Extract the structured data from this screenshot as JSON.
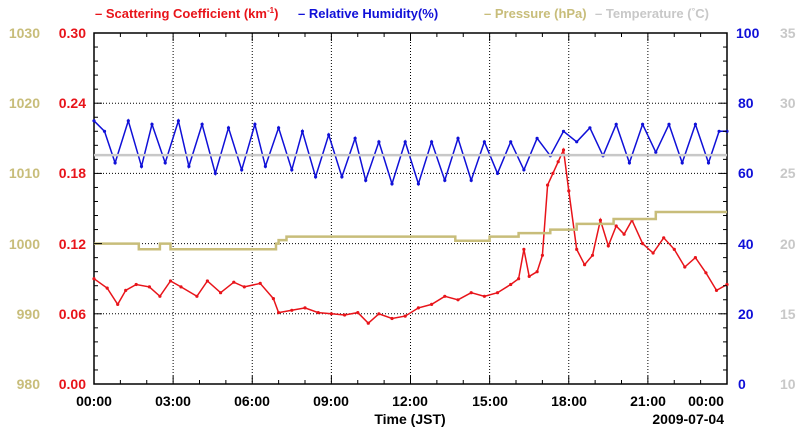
{
  "chart_data": {
    "type": "line",
    "date_label": "2009-07-04",
    "xlabel": "Time (JST)",
    "x_ticks": [
      "00:00",
      "03:00",
      "06:00",
      "09:00",
      "12:00",
      "15:00",
      "18:00",
      "21:00",
      "00:00"
    ],
    "x_range_hours": [
      0,
      24
    ],
    "legend": [
      {
        "dash": "–",
        "text": "Scattering Coefficient (km",
        "sup": "-1",
        "tail": ")",
        "color": "#e8141a"
      },
      {
        "dash": "–",
        "text": "Relative Humidity(%)",
        "color": "#1010d8"
      },
      {
        "dash": "–",
        "text": "Pressure (hPa)",
        "color": "#c8bd7a"
      },
      {
        "dash": "–",
        "text": "Temperature (",
        "deg": "°",
        "tail": "C)",
        "color": "#c8c8c8"
      }
    ],
    "axes": {
      "scattering": {
        "range": [
          0,
          0.3
        ],
        "ticks": [
          "0.00",
          "0.06",
          "0.12",
          "0.18",
          "0.24",
          "0.30"
        ],
        "color": "#e8141a"
      },
      "pressure": {
        "range": [
          980,
          1030
        ],
        "ticks": [
          "980",
          "990",
          "1000",
          "1010",
          "1020",
          "1030"
        ],
        "color": "#c8bd7a"
      },
      "humidity": {
        "range": [
          0,
          100
        ],
        "ticks": [
          "0",
          "20",
          "40",
          "60",
          "80",
          "100"
        ],
        "color": "#1010d8"
      },
      "temperature": {
        "range": [
          10,
          35
        ],
        "ticks": [
          "10",
          "15",
          "20",
          "25",
          "30",
          "35"
        ],
        "color": "#c8c8c8"
      }
    },
    "series": [
      {
        "name": "Scattering Coefficient",
        "axis": "scattering",
        "color": "#e8141a",
        "x": [
          0,
          0.5,
          0.9,
          1.2,
          1.6,
          2.1,
          2.5,
          2.9,
          3.3,
          3.9,
          4.3,
          4.8,
          5.3,
          5.7,
          6.3,
          6.8,
          7.0,
          7.5,
          8.0,
          8.5,
          9.0,
          9.5,
          10.0,
          10.4,
          10.8,
          11.3,
          11.8,
          12.3,
          12.8,
          13.3,
          13.8,
          14.3,
          14.8,
          15.3,
          15.8,
          16.1,
          16.3,
          16.5,
          16.8,
          17.0,
          17.2,
          17.4,
          17.6,
          17.8,
          18.0,
          18.3,
          18.6,
          18.9,
          19.2,
          19.5,
          19.8,
          20.1,
          20.4,
          20.8,
          21.2,
          21.6,
          22.0,
          22.4,
          22.8,
          23.2,
          23.6,
          24.0
        ],
        "values": [
          0.09,
          0.082,
          0.068,
          0.08,
          0.085,
          0.083,
          0.075,
          0.088,
          0.083,
          0.075,
          0.088,
          0.078,
          0.087,
          0.083,
          0.086,
          0.073,
          0.061,
          0.063,
          0.065,
          0.061,
          0.06,
          0.059,
          0.061,
          0.052,
          0.06,
          0.056,
          0.058,
          0.065,
          0.068,
          0.075,
          0.072,
          0.078,
          0.075,
          0.078,
          0.085,
          0.09,
          0.115,
          0.092,
          0.096,
          0.11,
          0.17,
          0.18,
          0.19,
          0.2,
          0.165,
          0.115,
          0.102,
          0.11,
          0.14,
          0.118,
          0.135,
          0.128,
          0.14,
          0.12,
          0.112,
          0.125,
          0.115,
          0.1,
          0.108,
          0.095,
          0.08,
          0.085
        ]
      },
      {
        "name": "Relative Humidity",
        "axis": "humidity",
        "color": "#1010d8",
        "x": [
          0,
          0.4,
          0.8,
          1.3,
          1.8,
          2.2,
          2.7,
          3.2,
          3.6,
          4.1,
          4.6,
          5.1,
          5.6,
          6.1,
          6.5,
          7.0,
          7.5,
          7.9,
          8.4,
          8.9,
          9.4,
          9.9,
          10.3,
          10.8,
          11.3,
          11.8,
          12.3,
          12.8,
          13.3,
          13.8,
          14.3,
          14.8,
          15.3,
          15.8,
          16.3,
          16.8,
          17.3,
          17.8,
          18.3,
          18.8,
          19.3,
          19.8,
          20.3,
          20.8,
          21.3,
          21.8,
          22.3,
          22.8,
          23.3,
          23.7,
          24.0
        ],
        "values": [
          75,
          72,
          63,
          75,
          62,
          74,
          63,
          75,
          62,
          74,
          60,
          73,
          61,
          74,
          62,
          73,
          61,
          72,
          59,
          71,
          59,
          70,
          58,
          69,
          57,
          69,
          57,
          69,
          58,
          70,
          58,
          69,
          60,
          69,
          61,
          70,
          65,
          72,
          69,
          73,
          65,
          74,
          63,
          74,
          66,
          74,
          63,
          74,
          63,
          72,
          72
        ]
      },
      {
        "name": "Pressure",
        "axis": "pressure",
        "color": "#c8bd7a",
        "x": [
          0,
          1.6,
          1.7,
          2.3,
          2.5,
          2.8,
          2.9,
          6.9,
          7.0,
          7.3,
          13.5,
          13.7,
          15.0,
          16.0,
          16.1,
          17.2,
          17.3,
          18.2,
          18.3,
          19.6,
          19.7,
          21.2,
          21.3,
          24.0
        ],
        "values": [
          1000.0,
          1000.0,
          999.2,
          999.2,
          1000.0,
          1000.0,
          999.2,
          1000.0,
          1000.5,
          1001.0,
          1001.0,
          1000.4,
          1001.0,
          1001.0,
          1001.5,
          1001.5,
          1002.0,
          1002.0,
          1002.8,
          1002.8,
          1003.5,
          1003.5,
          1004.5,
          1004.5
        ]
      },
      {
        "name": "Temperature",
        "axis": "temperature",
        "color": "#c8c8c8",
        "x": [
          0,
          24
        ],
        "values": [
          26.3,
          26.3
        ]
      }
    ]
  }
}
